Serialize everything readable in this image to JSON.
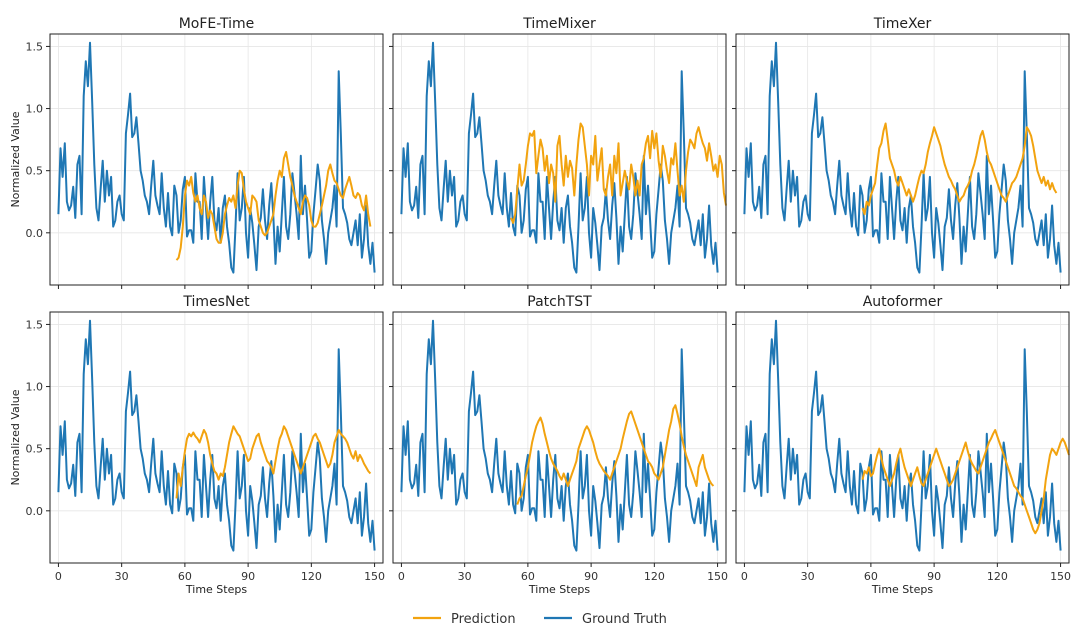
{
  "figure": {
    "xlabel": "Time Steps",
    "ylabel": "Normalized Value"
  },
  "legend": {
    "items": [
      {
        "label": "Prediction",
        "color": "#f2a30f"
      },
      {
        "label": "Ground Truth",
        "color": "#1f77b4"
      }
    ],
    "placement": "bottom-center"
  },
  "chart_data": {
    "type": "line",
    "grid": true,
    "xlim": [
      -4,
      154
    ],
    "ylim": [
      -0.42,
      1.6
    ],
    "xticks": [
      0,
      30,
      60,
      90,
      120,
      150
    ],
    "yticks": [
      0.0,
      0.5,
      1.0,
      1.5
    ],
    "xtick_labels": [
      "0",
      "30",
      "60",
      "90",
      "120",
      "150"
    ],
    "ytick_labels": [
      "0.0",
      "0.5",
      "1.0",
      "1.5"
    ],
    "ground_truth": {
      "name": "Ground Truth",
      "x_start": 0,
      "values": [
        0.15,
        0.68,
        0.45,
        0.72,
        0.25,
        0.18,
        0.22,
        0.37,
        0.12,
        0.55,
        0.62,
        0.15,
        1.1,
        1.38,
        1.18,
        1.53,
        1.05,
        0.55,
        0.2,
        0.1,
        0.35,
        0.58,
        0.25,
        0.5,
        0.3,
        0.45,
        0.05,
        0.1,
        0.25,
        0.3,
        0.15,
        0.1,
        0.8,
        0.95,
        1.12,
        0.77,
        0.8,
        0.93,
        0.72,
        0.5,
        0.42,
        0.3,
        0.25,
        0.15,
        0.38,
        0.58,
        0.3,
        0.22,
        0.15,
        0.48,
        0.2,
        0.05,
        0.32,
        0.05,
        -0.02,
        0.38,
        0.3,
        0.0,
        0.1,
        0.35,
        0.45,
        -0.03,
        0.02,
        0.02,
        -0.08,
        0.48,
        0.25,
        0.25,
        -0.05,
        0.45,
        0.2,
        -0.05,
        0.25,
        0.45,
        0.1,
        0.02,
        0.2,
        -0.08,
        0.2,
        0.3,
        0.05,
        -0.08,
        -0.28,
        -0.32,
        0.05,
        0.48,
        0.1,
        0.2,
        0.45,
        0.0,
        -0.2,
        0.2,
        0.08,
        -0.1,
        -0.3,
        0.05,
        0.12,
        0.35,
        0.1,
        -0.05,
        0.22,
        0.4,
        0.12,
        -0.25,
        0.05,
        -0.15,
        0.15,
        0.45,
        0.05,
        -0.05,
        0.15,
        0.48,
        0.32,
        0.15,
        -0.05,
        0.62,
        0.15,
        0.38,
        0.1,
        -0.2,
        -0.15,
        0.15,
        0.35,
        0.55,
        0.42,
        0.1,
        -0.05,
        -0.25,
        0.0,
        0.1,
        0.2,
        0.38,
        0.05,
        1.3,
        0.8,
        0.2,
        0.15,
        0.08,
        -0.05,
        -0.1,
        0.0,
        0.1,
        -0.1,
        0.15,
        -0.2,
        -0.05,
        0.22,
        -0.1,
        -0.25,
        -0.08,
        -0.32
      ]
    },
    "panels": [
      {
        "title": "MoFE-Time",
        "prediction": {
          "name": "Prediction",
          "x_start": 56,
          "values": [
            -0.22,
            -0.2,
            -0.12,
            0.05,
            0.3,
            0.42,
            0.38,
            0.45,
            0.32,
            0.25,
            0.3,
            0.2,
            0.15,
            0.3,
            0.25,
            0.12,
            0.18,
            0.15,
            0.05,
            -0.05,
            -0.08,
            -0.08,
            0.0,
            0.15,
            0.22,
            0.28,
            0.25,
            0.3,
            0.2,
            0.38,
            0.5,
            0.48,
            0.35,
            0.25,
            0.2,
            0.15,
            0.3,
            0.28,
            0.25,
            0.1,
            0.05,
            0.0,
            -0.02,
            0.0,
            0.05,
            0.1,
            0.15,
            0.3,
            0.42,
            0.5,
            0.45,
            0.6,
            0.65,
            0.55,
            0.45,
            0.38,
            0.3,
            0.25,
            0.2,
            0.15,
            0.25,
            0.3,
            0.28,
            0.22,
            0.1,
            0.05,
            0.05,
            0.08,
            0.15,
            0.22,
            0.3,
            0.38,
            0.5,
            0.55,
            0.48,
            0.42,
            0.4,
            0.35,
            0.3,
            0.28,
            0.35,
            0.4,
            0.45,
            0.38,
            0.3,
            0.28,
            0.32,
            0.3,
            0.22,
            0.18,
            0.3,
            0.15,
            0.05
          ]
        }
      },
      {
        "title": "TimeMixer",
        "prediction": {
          "name": "Prediction",
          "x_start": 52,
          "values": [
            0.12,
            0.08,
            0.15,
            0.35,
            0.55,
            0.38,
            0.42,
            0.55,
            0.7,
            0.8,
            0.78,
            0.82,
            0.48,
            0.62,
            0.75,
            0.68,
            0.5,
            0.62,
            0.4,
            0.55,
            0.48,
            0.25,
            0.7,
            0.78,
            0.55,
            0.38,
            0.62,
            0.45,
            0.58,
            0.52,
            0.3,
            0.55,
            0.75,
            0.88,
            0.85,
            0.7,
            0.55,
            0.3,
            0.62,
            0.55,
            0.78,
            0.42,
            0.55,
            0.68,
            0.35,
            0.3,
            0.45,
            0.55,
            0.3,
            0.62,
            0.48,
            0.72,
            0.3,
            0.4,
            0.5,
            0.42,
            0.35,
            0.55,
            0.45,
            0.3,
            0.42,
            0.3,
            0.55,
            0.6,
            0.72,
            0.78,
            0.6,
            0.82,
            0.68,
            0.8,
            0.58,
            0.45,
            0.7,
            0.62,
            0.5,
            0.4,
            0.6,
            0.55,
            0.72,
            0.5,
            0.3,
            0.38,
            0.25,
            0.5,
            0.65,
            0.75,
            0.72,
            0.68,
            0.8,
            0.85,
            0.78,
            0.72,
            0.68,
            0.58,
            0.72,
            0.62,
            0.5,
            0.55,
            0.45,
            0.62,
            0.55,
            0.32,
            0.22
          ]
        }
      },
      {
        "title": "TimeXer",
        "prediction": {
          "name": "Prediction",
          "x_start": 56,
          "values": [
            0.2,
            0.15,
            0.25,
            0.22,
            0.3,
            0.35,
            0.4,
            0.55,
            0.68,
            0.72,
            0.82,
            0.88,
            0.75,
            0.6,
            0.55,
            0.5,
            0.42,
            0.38,
            0.45,
            0.4,
            0.35,
            0.3,
            0.35,
            0.3,
            0.25,
            0.3,
            0.38,
            0.45,
            0.5,
            0.48,
            0.55,
            0.65,
            0.72,
            0.78,
            0.85,
            0.8,
            0.75,
            0.7,
            0.62,
            0.55,
            0.5,
            0.45,
            0.42,
            0.38,
            0.35,
            0.3,
            0.25,
            0.28,
            0.3,
            0.35,
            0.38,
            0.42,
            0.5,
            0.55,
            0.62,
            0.7,
            0.78,
            0.82,
            0.75,
            0.65,
            0.58,
            0.55,
            0.5,
            0.45,
            0.4,
            0.35,
            0.3,
            0.28,
            0.25,
            0.3,
            0.35,
            0.4,
            0.42,
            0.45,
            0.5,
            0.55,
            0.6,
            0.7,
            0.85,
            0.82,
            0.78,
            0.7,
            0.6,
            0.5,
            0.45,
            0.4,
            0.45,
            0.38,
            0.42,
            0.35,
            0.4,
            0.35,
            0.32
          ]
        }
      },
      {
        "title": "TimesNet",
        "prediction": {
          "name": "Prediction",
          "x_start": 56,
          "values": [
            0.1,
            0.3,
            0.2,
            0.35,
            0.48,
            0.58,
            0.62,
            0.6,
            0.63,
            0.6,
            0.58,
            0.55,
            0.6,
            0.65,
            0.62,
            0.55,
            0.45,
            0.38,
            0.32,
            0.3,
            0.25,
            0.3,
            0.28,
            0.35,
            0.45,
            0.55,
            0.62,
            0.68,
            0.65,
            0.62,
            0.6,
            0.55,
            0.5,
            0.45,
            0.4,
            0.42,
            0.5,
            0.55,
            0.6,
            0.62,
            0.55,
            0.5,
            0.45,
            0.4,
            0.38,
            0.35,
            0.3,
            0.4,
            0.5,
            0.58,
            0.62,
            0.68,
            0.65,
            0.6,
            0.55,
            0.5,
            0.45,
            0.4,
            0.35,
            0.3,
            0.35,
            0.4,
            0.45,
            0.5,
            0.55,
            0.6,
            0.62,
            0.58,
            0.55,
            0.5,
            0.45,
            0.4,
            0.35,
            0.38,
            0.45,
            0.55,
            0.6,
            0.65,
            0.62,
            0.6,
            0.58,
            0.55,
            0.5,
            0.45,
            0.42,
            0.48,
            0.4,
            0.45,
            0.42,
            0.38,
            0.35,
            0.32,
            0.3
          ]
        }
      },
      {
        "title": "PatchTST",
        "prediction": {
          "name": "Prediction",
          "x_start": 55,
          "values": [
            0.05,
            0.1,
            0.12,
            0.2,
            0.28,
            0.35,
            0.45,
            0.55,
            0.62,
            0.68,
            0.72,
            0.75,
            0.7,
            0.62,
            0.55,
            0.48,
            0.42,
            0.38,
            0.35,
            0.32,
            0.28,
            0.25,
            0.3,
            0.25,
            0.2,
            0.25,
            0.3,
            0.35,
            0.4,
            0.5,
            0.55,
            0.6,
            0.65,
            0.68,
            0.65,
            0.6,
            0.55,
            0.48,
            0.42,
            0.38,
            0.35,
            0.32,
            0.3,
            0.28,
            0.25,
            0.3,
            0.35,
            0.4,
            0.45,
            0.5,
            0.58,
            0.65,
            0.72,
            0.78,
            0.8,
            0.75,
            0.7,
            0.65,
            0.6,
            0.55,
            0.5,
            0.45,
            0.4,
            0.38,
            0.35,
            0.3,
            0.28,
            0.25,
            0.3,
            0.35,
            0.45,
            0.55,
            0.65,
            0.72,
            0.82,
            0.85,
            0.78,
            0.7,
            0.6,
            0.52,
            0.45,
            0.4,
            0.35,
            0.3,
            0.25,
            0.2,
            0.35,
            0.4,
            0.45,
            0.35,
            0.3,
            0.25,
            0.22,
            0.2
          ]
        }
      },
      {
        "title": "Autoformer",
        "prediction": {
          "name": "Prediction",
          "x_start": 56,
          "values": [
            0.25,
            0.32,
            0.3,
            0.35,
            0.28,
            0.3,
            0.38,
            0.45,
            0.5,
            0.42,
            0.35,
            0.3,
            0.25,
            0.2,
            0.25,
            0.3,
            0.38,
            0.45,
            0.5,
            0.42,
            0.35,
            0.3,
            0.25,
            0.2,
            0.25,
            0.3,
            0.35,
            0.28,
            0.22,
            0.2,
            0.25,
            0.3,
            0.35,
            0.4,
            0.45,
            0.5,
            0.45,
            0.4,
            0.35,
            0.3,
            0.25,
            0.2,
            0.22,
            0.25,
            0.3,
            0.35,
            0.4,
            0.45,
            0.5,
            0.55,
            0.48,
            0.42,
            0.38,
            0.35,
            0.32,
            0.3,
            0.35,
            0.4,
            0.45,
            0.5,
            0.55,
            0.58,
            0.62,
            0.65,
            0.6,
            0.55,
            0.5,
            0.45,
            0.4,
            0.35,
            0.3,
            0.25,
            0.2,
            0.18,
            0.15,
            0.12,
            0.1,
            0.05,
            0.0,
            -0.05,
            -0.1,
            -0.15,
            -0.18,
            -0.15,
            -0.1,
            0.0,
            0.1,
            0.25,
            0.35,
            0.45,
            0.5,
            0.48,
            0.45,
            0.5,
            0.55,
            0.58,
            0.55,
            0.5,
            0.45
          ]
        }
      }
    ]
  }
}
